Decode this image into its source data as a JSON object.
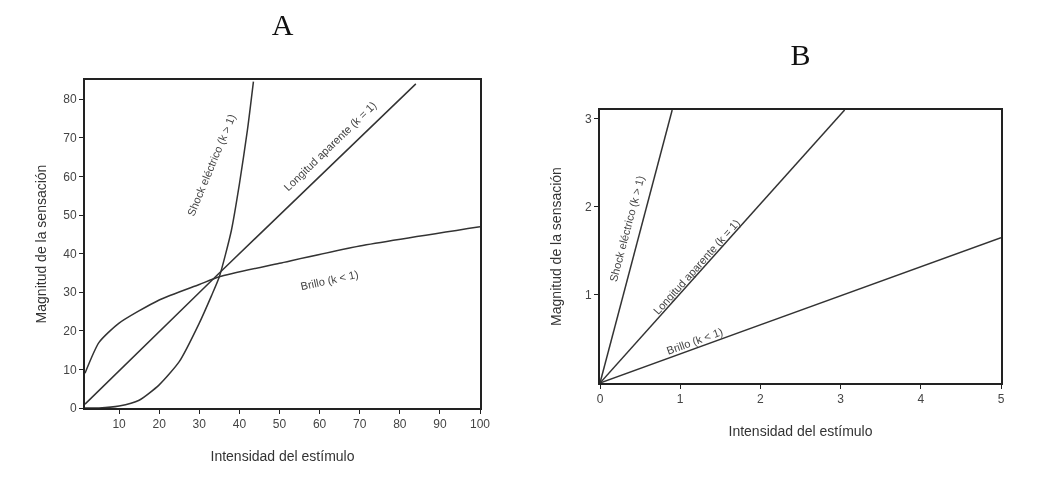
{
  "chart_data": [
    {
      "type": "line",
      "title": "A",
      "xlabel": "Intensidad del estímulo",
      "ylabel": "Magnitud de la sensación",
      "xlim": [
        1.5,
        100
      ],
      "ylim": [
        0,
        85
      ],
      "xticks": [
        10,
        20,
        30,
        40,
        50,
        60,
        70,
        80,
        90,
        100
      ],
      "yticks": [
        0,
        10,
        20,
        30,
        40,
        50,
        60,
        70,
        80
      ],
      "grid": false,
      "legend": false,
      "marker": "none",
      "series": [
        {
          "name": "Shock eléctrico (k > 1)",
          "color": "#333333",
          "x": [
            1.5,
            5,
            10,
            15,
            20,
            25,
            30,
            33,
            35,
            38,
            40,
            42,
            43.5
          ],
          "values": [
            0,
            0,
            0.5,
            2,
            6,
            12,
            22,
            29,
            34,
            46,
            58,
            72,
            84.6
          ]
        },
        {
          "name": "Longitud aparente (k = 1)",
          "color": "#333333",
          "x": [
            1.5,
            35,
            84
          ],
          "values": [
            1,
            35,
            84
          ]
        },
        {
          "name": "Brillo (k < 1)",
          "color": "#333333",
          "x": [
            1.5,
            5,
            10,
            20,
            30,
            35,
            50,
            70,
            100
          ],
          "values": [
            9,
            17,
            22,
            28,
            32,
            34,
            37.5,
            42,
            47
          ]
        }
      ]
    },
    {
      "type": "line",
      "title": "B",
      "xlabel": "Intensidad del estímulo",
      "ylabel": "Magnitud de la sensación",
      "xlim": [
        0,
        5
      ],
      "ylim": [
        0,
        3.1
      ],
      "xticks": [
        0,
        1,
        2,
        3,
        4,
        5
      ],
      "yticks": [
        1,
        2,
        3
      ],
      "grid": false,
      "legend": false,
      "marker": "none",
      "series": [
        {
          "name": "Shock eléctrico (k > 1)",
          "color": "#333333",
          "x": [
            0,
            0.9
          ],
          "values": [
            0,
            3.1
          ]
        },
        {
          "name": "Longitud aparente (k = 1)",
          "color": "#333333",
          "x": [
            0,
            3.05
          ],
          "values": [
            0,
            3.1
          ]
        },
        {
          "name": "Brillo (k < 1)",
          "color": "#333333",
          "x": [
            0,
            5
          ],
          "values": [
            0,
            1.65
          ]
        }
      ]
    }
  ]
}
